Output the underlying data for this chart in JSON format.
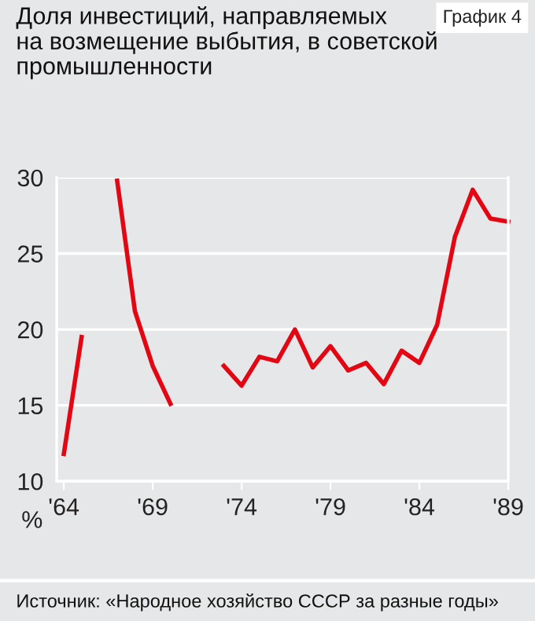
{
  "chart_data": {
    "type": "line",
    "title": "Доля инвестиций, направляемых\nна возмещение выбытия, в советской\nпромышленности",
    "subtitle": "График 4",
    "ylabel": "%",
    "x": [
      1964,
      1965,
      1966,
      1967,
      1968,
      1969,
      1970,
      1971,
      1972,
      1973,
      1974,
      1975,
      1976,
      1977,
      1978,
      1979,
      1980,
      1981,
      1982,
      1983,
      1984,
      1985,
      1986,
      1987,
      1988,
      1989
    ],
    "series": [
      {
        "color": "#e30613",
        "values": [
          11.8,
          19.5,
          null,
          29.8,
          21.2,
          17.6,
          15.1,
          null,
          null,
          17.6,
          16.3,
          18.2,
          17.9,
          20.0,
          17.5,
          18.9,
          17.3,
          17.8,
          16.4,
          18.6,
          17.8,
          20.3,
          26.1,
          29.2,
          27.3,
          27.1
        ]
      }
    ],
    "xlim": [
      1963.6,
      1989
    ],
    "ylim": [
      10,
      30
    ],
    "xticks": [
      {
        "value": 1964,
        "label": "'64"
      },
      {
        "value": 1969,
        "label": "'69"
      },
      {
        "value": 1974,
        "label": "'74"
      },
      {
        "value": 1979,
        "label": "'79"
      },
      {
        "value": 1984,
        "label": "'84"
      },
      {
        "value": 1989,
        "label": "'89"
      }
    ],
    "yticks": [
      10,
      15,
      20,
      25,
      30
    ],
    "grid": "y",
    "annotations": [
      "Источник: «Народное хозяйство СССР за разные годы»"
    ]
  }
}
